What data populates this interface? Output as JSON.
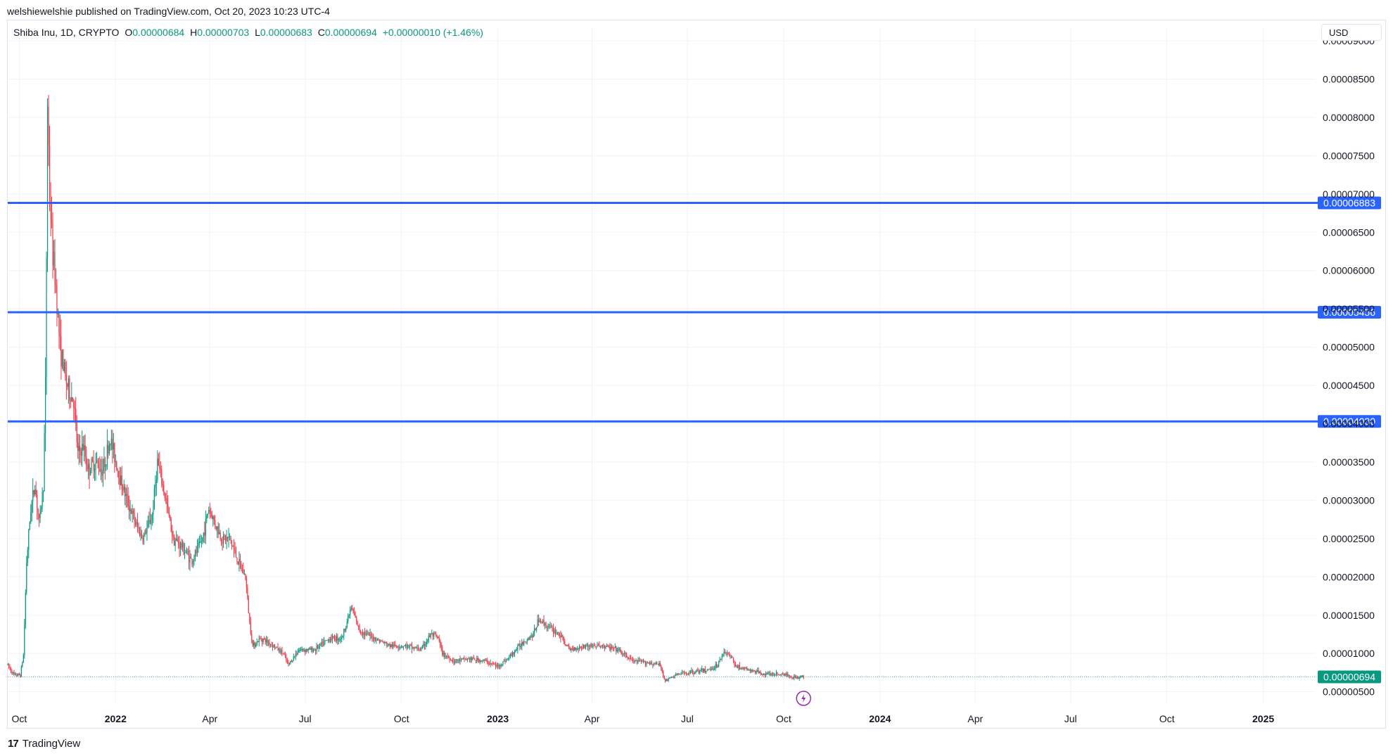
{
  "header": {
    "published": "welshiewelshie published on TradingView.com, Oct 20, 2023 10:23 UTC-4"
  },
  "legend": {
    "symbol": "Shiba Inu, 1D, CRYPTO",
    "o_label": "O",
    "o_value": "0.00000684",
    "h_label": "H",
    "h_value": "0.00000703",
    "l_label": "L",
    "l_value": "0.00000683",
    "c_label": "C",
    "c_value": "0.00000694",
    "change": "+0.00000010 (+1.46%)"
  },
  "currency": "USD",
  "footer": {
    "brand": "TradingView",
    "logo_mark": "17"
  },
  "colors": {
    "up": "#089981",
    "down": "#f23645",
    "level_line": "#2962ff",
    "last_price": "#089981"
  },
  "chart_data": {
    "type": "candlestick",
    "x_tick_labels": [
      "Oct",
      "2022",
      "Apr",
      "Jul",
      "Oct",
      "2023",
      "Apr",
      "Jul",
      "Oct",
      "2024",
      "Apr",
      "Jul",
      "Oct",
      "2025"
    ],
    "bold_x_ticks": [
      "2022",
      "2023",
      "2024",
      "2025"
    ],
    "x_tick_dates": [
      "2021-10-01",
      "2022-01-01",
      "2022-04-01",
      "2022-07-01",
      "2022-10-01",
      "2023-01-01",
      "2023-04-01",
      "2023-07-01",
      "2023-10-01",
      "2024-01-01",
      "2024-04-01",
      "2024-07-01",
      "2024-10-01",
      "2025-01-01"
    ],
    "y_tick_labels": [
      "0.00000500",
      "0.00001000",
      "0.00001500",
      "0.00002000",
      "0.00002500",
      "0.00003000",
      "0.00003500",
      "0.00004000",
      "0.00004500",
      "0.00005000",
      "0.00005500",
      "0.00006000",
      "0.00006500",
      "0.00007000",
      "0.00007500",
      "0.00008000",
      "0.00008500",
      "0.00009000"
    ],
    "y_tick_values": [
      5e-06,
      1e-05,
      1.5e-05,
      2e-05,
      2.5e-05,
      3e-05,
      3.5e-05,
      4e-05,
      4.5e-05,
      5e-05,
      5.5e-05,
      6e-05,
      6.5e-05,
      7e-05,
      7.5e-05,
      8e-05,
      8.5e-05,
      9e-05
    ],
    "ylim": [
      3.5e-06,
      9e-05
    ],
    "xlim": [
      "2021-09-20",
      "2025-02-20"
    ],
    "horizontal_levels": [
      {
        "value": 6.883e-05,
        "label": "0.00006883"
      },
      {
        "value": 5.456e-05,
        "label": "0.00005456"
      },
      {
        "value": 4.03e-05,
        "label": "0.00004030"
      }
    ],
    "last_price": {
      "value": 6.94e-06,
      "label": "0.00000694"
    },
    "close_path": [
      [
        "2021-09-20",
        8.5e-06
      ],
      [
        "2021-09-26",
        7.2e-06
      ],
      [
        "2021-10-02",
        7.2e-06
      ],
      [
        "2021-10-05",
        9.8e-06
      ],
      [
        "2021-10-08",
        2.2e-05
      ],
      [
        "2021-10-12",
        2.9e-05
      ],
      [
        "2021-10-16",
        3.2e-05
      ],
      [
        "2021-10-20",
        2.7e-05
      ],
      [
        "2021-10-24",
        3.2e-05
      ],
      [
        "2021-10-26",
        4.5e-05
      ],
      [
        "2021-10-27",
        6.2e-05
      ],
      [
        "2021-10-28",
        8.2e-05
      ],
      [
        "2021-10-30",
        7e-05
      ],
      [
        "2021-11-02",
        6.2e-05
      ],
      [
        "2021-11-05",
        5.8e-05
      ],
      [
        "2021-11-09",
        5e-05
      ],
      [
        "2021-11-14",
        4.6e-05
      ],
      [
        "2021-11-18",
        4.4e-05
      ],
      [
        "2021-11-22",
        4.3e-05
      ],
      [
        "2021-11-26",
        3.6e-05
      ],
      [
        "2021-12-01",
        3.7e-05
      ],
      [
        "2021-12-06",
        3.4e-05
      ],
      [
        "2021-12-12",
        3.5e-05
      ],
      [
        "2021-12-20",
        3.4e-05
      ],
      [
        "2021-12-27",
        3.8e-05
      ],
      [
        "2022-01-05",
        3.3e-05
      ],
      [
        "2022-01-12",
        3e-05
      ],
      [
        "2022-01-20",
        2.7e-05
      ],
      [
        "2022-01-27",
        2.5e-05
      ],
      [
        "2022-02-05",
        2.8e-05
      ],
      [
        "2022-02-10",
        3.5e-05
      ],
      [
        "2022-02-18",
        3e-05
      ],
      [
        "2022-02-25",
        2.5e-05
      ],
      [
        "2022-03-05",
        2.4e-05
      ],
      [
        "2022-03-15",
        2.2e-05
      ],
      [
        "2022-03-25",
        2.5e-05
      ],
      [
        "2022-03-31",
        2.9e-05
      ],
      [
        "2022-04-06",
        2.7e-05
      ],
      [
        "2022-04-12",
        2.5e-05
      ],
      [
        "2022-04-20",
        2.5e-05
      ],
      [
        "2022-04-28",
        2.2e-05
      ],
      [
        "2022-05-05",
        2e-05
      ],
      [
        "2022-05-09",
        1.4e-05
      ],
      [
        "2022-05-12",
        1.1e-05
      ],
      [
        "2022-05-20",
        1.2e-05
      ],
      [
        "2022-06-01",
        1.1e-05
      ],
      [
        "2022-06-10",
        1e-05
      ],
      [
        "2022-06-15",
        8.5e-06
      ],
      [
        "2022-06-25",
        1.05e-05
      ],
      [
        "2022-07-10",
        1.05e-05
      ],
      [
        "2022-07-25",
        1.2e-05
      ],
      [
        "2022-08-05",
        1.2e-05
      ],
      [
        "2022-08-14",
        1.6e-05
      ],
      [
        "2022-08-22",
        1.3e-05
      ],
      [
        "2022-09-05",
        1.2e-05
      ],
      [
        "2022-09-20",
        1.1e-05
      ],
      [
        "2022-10-05",
        1.1e-05
      ],
      [
        "2022-10-20",
        1.05e-05
      ],
      [
        "2022-10-29",
        1.25e-05
      ],
      [
        "2022-11-05",
        1.2e-05
      ],
      [
        "2022-11-09",
        1e-05
      ],
      [
        "2022-11-20",
        9e-06
      ],
      [
        "2022-12-05",
        9.3e-06
      ],
      [
        "2022-12-20",
        9e-06
      ],
      [
        "2023-01-01",
        8.3e-06
      ],
      [
        "2023-01-12",
        9.5e-06
      ],
      [
        "2023-01-25",
        1.15e-05
      ],
      [
        "2023-02-04",
        1.25e-05
      ],
      [
        "2023-02-09",
        1.45e-05
      ],
      [
        "2023-02-18",
        1.35e-05
      ],
      [
        "2023-03-01",
        1.25e-05
      ],
      [
        "2023-03-10",
        1.05e-05
      ],
      [
        "2023-03-25",
        1.1e-05
      ],
      [
        "2023-04-10",
        1.1e-05
      ],
      [
        "2023-04-25",
        1.05e-05
      ],
      [
        "2023-05-10",
        9e-06
      ],
      [
        "2023-05-25",
        8.8e-06
      ],
      [
        "2023-06-05",
        8.5e-06
      ],
      [
        "2023-06-10",
        6.4e-06
      ],
      [
        "2023-06-20",
        7.2e-06
      ],
      [
        "2023-07-05",
        7.6e-06
      ],
      [
        "2023-07-20",
        7.8e-06
      ],
      [
        "2023-07-30",
        8.5e-06
      ],
      [
        "2023-08-05",
        1.03e-05
      ],
      [
        "2023-08-12",
        9.5e-06
      ],
      [
        "2023-08-17",
        8.3e-06
      ],
      [
        "2023-09-01",
        7.7e-06
      ],
      [
        "2023-09-15",
        7.3e-06
      ],
      [
        "2023-10-01",
        7.3e-06
      ],
      [
        "2023-10-10",
        6.9e-06
      ],
      [
        "2023-10-20",
        6.94e-06
      ]
    ]
  }
}
